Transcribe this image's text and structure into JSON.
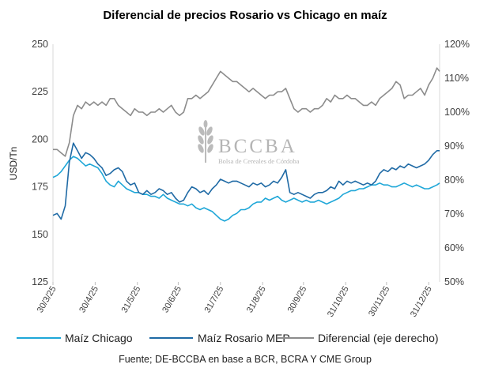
{
  "chart_data": {
    "type": "line",
    "title": "Diferencial de precios Rosario vs Chicago en maíz",
    "ylabel": "USD/Tn",
    "y2label": "",
    "ylim": [
      125,
      250
    ],
    "y_ticks": [
      "125",
      "150",
      "175",
      "200",
      "225",
      "250"
    ],
    "y2lim": [
      50,
      120
    ],
    "y2_ticks": [
      "50%",
      "60%",
      "70%",
      "80%",
      "90%",
      "100%",
      "110%",
      "120%"
    ],
    "x_ticks": [
      "30/3/25",
      "30/4/25",
      "31/5/25",
      "30/6/25",
      "31/7/25",
      "31/8/25",
      "30/9/25",
      "31/10/25",
      "30/11/25",
      "31/12/25"
    ],
    "x_range_days": [
      0,
      284
    ],
    "x_tick_days": [
      0,
      31,
      62,
      92,
      123,
      154,
      184,
      215,
      245,
      276
    ],
    "source": "Fuente; DE-BCCBA en base a BCR, BCRA Y CME Group",
    "watermark": {
      "name": "BCCBA",
      "subtitle": "Bolsa de Cereales de Córdoba"
    },
    "series": [
      {
        "name": "Maíz Chicago",
        "axis": "left",
        "color": "#1fa7d8",
        "points": [
          [
            0,
            180
          ],
          [
            3,
            181
          ],
          [
            6,
            183
          ],
          [
            9,
            186
          ],
          [
            12,
            189
          ],
          [
            15,
            191
          ],
          [
            18,
            190
          ],
          [
            21,
            188
          ],
          [
            24,
            186
          ],
          [
            27,
            187
          ],
          [
            30,
            186
          ],
          [
            33,
            185
          ],
          [
            36,
            182
          ],
          [
            39,
            178
          ],
          [
            42,
            176
          ],
          [
            45,
            175
          ],
          [
            48,
            178
          ],
          [
            51,
            176
          ],
          [
            54,
            174
          ],
          [
            57,
            173
          ],
          [
            60,
            172
          ],
          [
            63,
            172
          ],
          [
            66,
            171
          ],
          [
            69,
            171
          ],
          [
            72,
            170
          ],
          [
            75,
            170
          ],
          [
            78,
            169
          ],
          [
            81,
            171
          ],
          [
            84,
            169
          ],
          [
            87,
            168
          ],
          [
            90,
            167
          ],
          [
            93,
            166
          ],
          [
            96,
            166
          ],
          [
            99,
            165
          ],
          [
            102,
            166
          ],
          [
            105,
            164
          ],
          [
            108,
            163
          ],
          [
            111,
            164
          ],
          [
            114,
            163
          ],
          [
            117,
            162
          ],
          [
            120,
            160
          ],
          [
            123,
            158
          ],
          [
            126,
            157
          ],
          [
            129,
            158
          ],
          [
            132,
            160
          ],
          [
            135,
            161
          ],
          [
            138,
            163
          ],
          [
            141,
            163
          ],
          [
            144,
            164
          ],
          [
            147,
            166
          ],
          [
            150,
            167
          ],
          [
            153,
            167
          ],
          [
            156,
            169
          ],
          [
            159,
            168
          ],
          [
            162,
            169
          ],
          [
            165,
            170
          ],
          [
            168,
            168
          ],
          [
            171,
            167
          ],
          [
            174,
            168
          ],
          [
            177,
            169
          ],
          [
            180,
            168
          ],
          [
            183,
            167
          ],
          [
            186,
            168
          ],
          [
            189,
            167
          ],
          [
            192,
            167
          ],
          [
            195,
            168
          ],
          [
            198,
            167
          ],
          [
            201,
            166
          ],
          [
            204,
            167
          ],
          [
            207,
            168
          ],
          [
            210,
            169
          ],
          [
            213,
            171
          ],
          [
            216,
            172
          ],
          [
            219,
            173
          ],
          [
            222,
            173
          ],
          [
            225,
            174
          ],
          [
            228,
            174
          ],
          [
            231,
            175
          ],
          [
            234,
            176
          ],
          [
            237,
            176
          ],
          [
            240,
            177
          ],
          [
            243,
            176
          ],
          [
            246,
            176
          ],
          [
            249,
            175
          ],
          [
            252,
            175
          ],
          [
            255,
            176
          ],
          [
            258,
            177
          ],
          [
            261,
            176
          ],
          [
            264,
            175
          ],
          [
            267,
            176
          ],
          [
            270,
            175
          ],
          [
            273,
            174
          ],
          [
            276,
            174
          ],
          [
            279,
            175
          ],
          [
            282,
            176
          ],
          [
            284,
            177
          ]
        ]
      },
      {
        "name": "Maíz Rosario MEP",
        "axis": "left",
        "color": "#1f6aa5",
        "points": [
          [
            0,
            160
          ],
          [
            3,
            161
          ],
          [
            6,
            158
          ],
          [
            9,
            165
          ],
          [
            12,
            188
          ],
          [
            15,
            198
          ],
          [
            18,
            194
          ],
          [
            21,
            190
          ],
          [
            24,
            193
          ],
          [
            27,
            192
          ],
          [
            30,
            190
          ],
          [
            33,
            187
          ],
          [
            36,
            185
          ],
          [
            39,
            181
          ],
          [
            42,
            182
          ],
          [
            45,
            184
          ],
          [
            48,
            185
          ],
          [
            51,
            183
          ],
          [
            54,
            178
          ],
          [
            57,
            176
          ],
          [
            60,
            177
          ],
          [
            63,
            172
          ],
          [
            66,
            171
          ],
          [
            69,
            173
          ],
          [
            72,
            171
          ],
          [
            75,
            172
          ],
          [
            78,
            174
          ],
          [
            81,
            173
          ],
          [
            84,
            171
          ],
          [
            87,
            172
          ],
          [
            90,
            169
          ],
          [
            93,
            167
          ],
          [
            96,
            168
          ],
          [
            99,
            172
          ],
          [
            102,
            175
          ],
          [
            105,
            174
          ],
          [
            108,
            172
          ],
          [
            111,
            173
          ],
          [
            114,
            171
          ],
          [
            117,
            174
          ],
          [
            120,
            176
          ],
          [
            123,
            179
          ],
          [
            126,
            178
          ],
          [
            129,
            177
          ],
          [
            132,
            178
          ],
          [
            135,
            178
          ],
          [
            138,
            177
          ],
          [
            141,
            176
          ],
          [
            144,
            175
          ],
          [
            147,
            177
          ],
          [
            150,
            176
          ],
          [
            153,
            177
          ],
          [
            156,
            175
          ],
          [
            159,
            176
          ],
          [
            162,
            178
          ],
          [
            165,
            177
          ],
          [
            168,
            180
          ],
          [
            171,
            184
          ],
          [
            174,
            172
          ],
          [
            177,
            171
          ],
          [
            180,
            172
          ],
          [
            183,
            171
          ],
          [
            186,
            170
          ],
          [
            189,
            169
          ],
          [
            192,
            171
          ],
          [
            195,
            172
          ],
          [
            198,
            172
          ],
          [
            201,
            173
          ],
          [
            204,
            175
          ],
          [
            207,
            174
          ],
          [
            210,
            178
          ],
          [
            213,
            176
          ],
          [
            216,
            178
          ],
          [
            219,
            177
          ],
          [
            222,
            178
          ],
          [
            225,
            177
          ],
          [
            228,
            176
          ],
          [
            231,
            177
          ],
          [
            234,
            176
          ],
          [
            237,
            178
          ],
          [
            240,
            182
          ],
          [
            243,
            184
          ],
          [
            246,
            183
          ],
          [
            249,
            185
          ],
          [
            252,
            184
          ],
          [
            255,
            186
          ],
          [
            258,
            185
          ],
          [
            261,
            187
          ],
          [
            264,
            186
          ],
          [
            267,
            185
          ],
          [
            270,
            186
          ],
          [
            273,
            187
          ],
          [
            276,
            189
          ],
          [
            279,
            192
          ],
          [
            282,
            194
          ],
          [
            284,
            194
          ]
        ]
      },
      {
        "name": "Diferencial (eje derecho)",
        "axis": "right",
        "color": "#8c8c8c",
        "points": [
          [
            0,
            89
          ],
          [
            3,
            89
          ],
          [
            6,
            88
          ],
          [
            9,
            87
          ],
          [
            12,
            91
          ],
          [
            15,
            99
          ],
          [
            18,
            102
          ],
          [
            21,
            101
          ],
          [
            24,
            103
          ],
          [
            27,
            102
          ],
          [
            30,
            103
          ],
          [
            33,
            102
          ],
          [
            36,
            103
          ],
          [
            39,
            102
          ],
          [
            42,
            104
          ],
          [
            45,
            104
          ],
          [
            48,
            102
          ],
          [
            51,
            101
          ],
          [
            54,
            100
          ],
          [
            57,
            99
          ],
          [
            60,
            101
          ],
          [
            63,
            100
          ],
          [
            66,
            100
          ],
          [
            69,
            99
          ],
          [
            72,
            100
          ],
          [
            75,
            100
          ],
          [
            78,
            101
          ],
          [
            81,
            100
          ],
          [
            84,
            101
          ],
          [
            87,
            102
          ],
          [
            90,
            100
          ],
          [
            93,
            99
          ],
          [
            96,
            100
          ],
          [
            99,
            104
          ],
          [
            102,
            104
          ],
          [
            105,
            105
          ],
          [
            108,
            104
          ],
          [
            111,
            105
          ],
          [
            114,
            106
          ],
          [
            117,
            108
          ],
          [
            120,
            110
          ],
          [
            123,
            112
          ],
          [
            126,
            111
          ],
          [
            129,
            110
          ],
          [
            132,
            109
          ],
          [
            135,
            109
          ],
          [
            138,
            108
          ],
          [
            141,
            107
          ],
          [
            144,
            106
          ],
          [
            147,
            107
          ],
          [
            150,
            106
          ],
          [
            153,
            105
          ],
          [
            156,
            104
          ],
          [
            159,
            105
          ],
          [
            162,
            105
          ],
          [
            165,
            106
          ],
          [
            168,
            106
          ],
          [
            171,
            107
          ],
          [
            174,
            104
          ],
          [
            177,
            101
          ],
          [
            180,
            100
          ],
          [
            183,
            101
          ],
          [
            186,
            101
          ],
          [
            189,
            100
          ],
          [
            192,
            101
          ],
          [
            195,
            101
          ],
          [
            198,
            102
          ],
          [
            201,
            104
          ],
          [
            204,
            103
          ],
          [
            207,
            105
          ],
          [
            210,
            104
          ],
          [
            213,
            104
          ],
          [
            216,
            105
          ],
          [
            219,
            104
          ],
          [
            222,
            104
          ],
          [
            225,
            103
          ],
          [
            228,
            102
          ],
          [
            231,
            102
          ],
          [
            234,
            103
          ],
          [
            237,
            102
          ],
          [
            240,
            104
          ],
          [
            243,
            105
          ],
          [
            246,
            106
          ],
          [
            249,
            107
          ],
          [
            252,
            109
          ],
          [
            255,
            108
          ],
          [
            258,
            104
          ],
          [
            261,
            105
          ],
          [
            264,
            105
          ],
          [
            267,
            106
          ],
          [
            270,
            107
          ],
          [
            273,
            105
          ],
          [
            276,
            108
          ],
          [
            279,
            110
          ],
          [
            282,
            113
          ],
          [
            284,
            112
          ]
        ]
      }
    ]
  }
}
